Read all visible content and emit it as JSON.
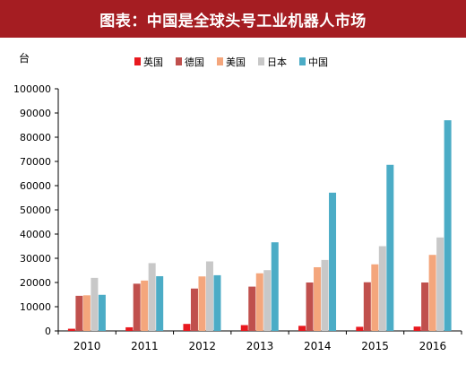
{
  "header": {
    "title": "图表：中国是全球头号工业机器人市场"
  },
  "colors": {
    "header_bg": "#a51d22",
    "axis": "#000000",
    "tick_text": "#000000"
  },
  "chart_data": {
    "type": "bar",
    "unit_label": "台",
    "categories": [
      "2010",
      "2011",
      "2012",
      "2013",
      "2014",
      "2015",
      "2016"
    ],
    "series": [
      {
        "name": "英国",
        "color": "#e8191f",
        "values": [
          900,
          1500,
          2900,
          2400,
          2100,
          1700,
          1800
        ]
      },
      {
        "name": "德国",
        "color": "#c0504d",
        "values": [
          14500,
          19500,
          17500,
          18300,
          20000,
          20100,
          20000
        ]
      },
      {
        "name": "美国",
        "color": "#f4a67c",
        "values": [
          14700,
          20800,
          22500,
          23800,
          26300,
          27500,
          31400
        ]
      },
      {
        "name": "日本",
        "color": "#c8c8c8",
        "values": [
          21900,
          28000,
          28700,
          25100,
          29300,
          35000,
          38600
        ]
      },
      {
        "name": "中国",
        "color": "#4bacc6",
        "values": [
          14900,
          22600,
          23000,
          36600,
          57100,
          68600,
          87000
        ]
      }
    ],
    "ylim": [
      0,
      100000
    ],
    "yticks": [
      "0",
      "10000",
      "20000",
      "30000",
      "40000",
      "50000",
      "60000",
      "70000",
      "80000",
      "90000",
      "100000"
    ],
    "xlabel": "",
    "ylabel": "",
    "legend_position": "top-center",
    "grid": false
  }
}
